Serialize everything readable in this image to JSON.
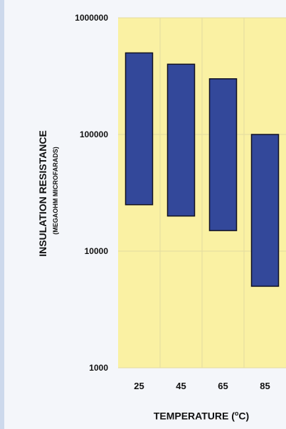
{
  "chart_data": {
    "type": "bar",
    "subtype": "floating-range",
    "categories": [
      "25",
      "45",
      "65",
      "85"
    ],
    "series": [
      {
        "ranges": [
          {
            "low": 25000,
            "high": 500000
          },
          {
            "low": 20000,
            "high": 400000
          },
          {
            "low": 15000,
            "high": 300000
          },
          {
            "low": 5000,
            "high": 100000
          }
        ]
      }
    ],
    "ylim": [
      1000,
      1000000
    ],
    "yscale": "log",
    "yticks": [
      "1000",
      "10000",
      "100000",
      "1000000"
    ],
    "ylabel": "INSULATION RESISTANCE",
    "ylabel_sub": "(MEGAOHM MICROFARADS)",
    "xlabel_prefix": "TEMPERATURE (",
    "xlabel_unit_sup": "o",
    "xlabel_suffix": "C)",
    "grid": true,
    "colors": {
      "plot_bg": "#faf1a3",
      "bar_fill": "#33489a",
      "bar_stroke": "#111122",
      "grid": "#e3dca0"
    }
  }
}
